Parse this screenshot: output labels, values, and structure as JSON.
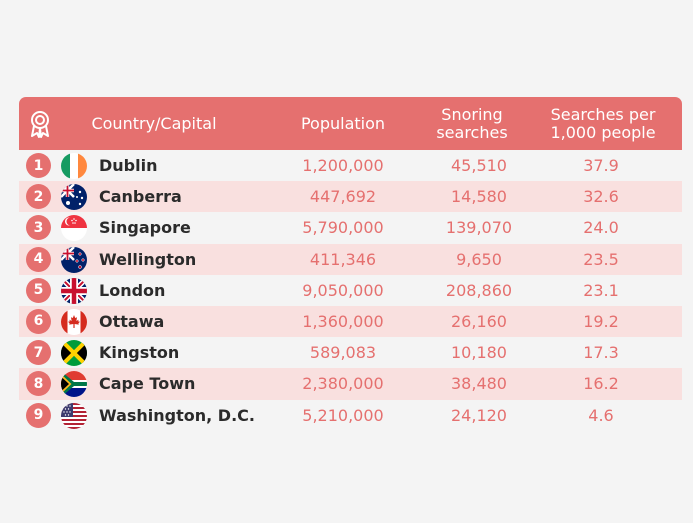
{
  "colors": {
    "accent": "#e5706f",
    "stripe": "#f9e0df",
    "text": "#2b2b2b"
  },
  "header": {
    "rank_icon": "award-ribbon-icon",
    "country_capital": "Country/Capital",
    "population": "Population",
    "snoring_searches": "Snoring\nsearches",
    "searches_per_1000": "Searches per\n1,000 people"
  },
  "chart_data": {
    "type": "table",
    "columns": [
      "",
      "Country/Capital",
      "Population",
      "Snoring searches",
      "Searches per 1,000 people"
    ],
    "rows": [
      {
        "rank": "1",
        "flag": "ireland-flag-icon",
        "capital": "Dublin",
        "population": "1,200,000",
        "snoring_searches": "45,510",
        "per_1000": "37.9"
      },
      {
        "rank": "2",
        "flag": "australia-flag-icon",
        "capital": "Canberra",
        "population": "447,692",
        "snoring_searches": "14,580",
        "per_1000": "32.6"
      },
      {
        "rank": "3",
        "flag": "singapore-flag-icon",
        "capital": "Singapore",
        "population": "5,790,000",
        "snoring_searches": "139,070",
        "per_1000": "24.0"
      },
      {
        "rank": "4",
        "flag": "new-zealand-flag-icon",
        "capital": "Wellington",
        "population": "411,346",
        "snoring_searches": "9,650",
        "per_1000": "23.5"
      },
      {
        "rank": "5",
        "flag": "united-kingdom-flag-icon",
        "capital": "London",
        "population": "9,050,000",
        "snoring_searches": "208,860",
        "per_1000": "23.1"
      },
      {
        "rank": "6",
        "flag": "canada-flag-icon",
        "capital": "Ottawa",
        "population": "1,360,000",
        "snoring_searches": "26,160",
        "per_1000": "19.2"
      },
      {
        "rank": "7",
        "flag": "jamaica-flag-icon",
        "capital": "Kingston",
        "population": "589,083",
        "snoring_searches": "10,180",
        "per_1000": "17.3"
      },
      {
        "rank": "8",
        "flag": "south-africa-flag-icon",
        "capital": "Cape Town",
        "population": "2,380,000",
        "snoring_searches": "38,480",
        "per_1000": "16.2"
      },
      {
        "rank": "9",
        "flag": "united-states-flag-icon",
        "capital": "Washington, D.C.",
        "population": "5,210,000",
        "snoring_searches": "24,120",
        "per_1000": "4.6"
      }
    ]
  }
}
